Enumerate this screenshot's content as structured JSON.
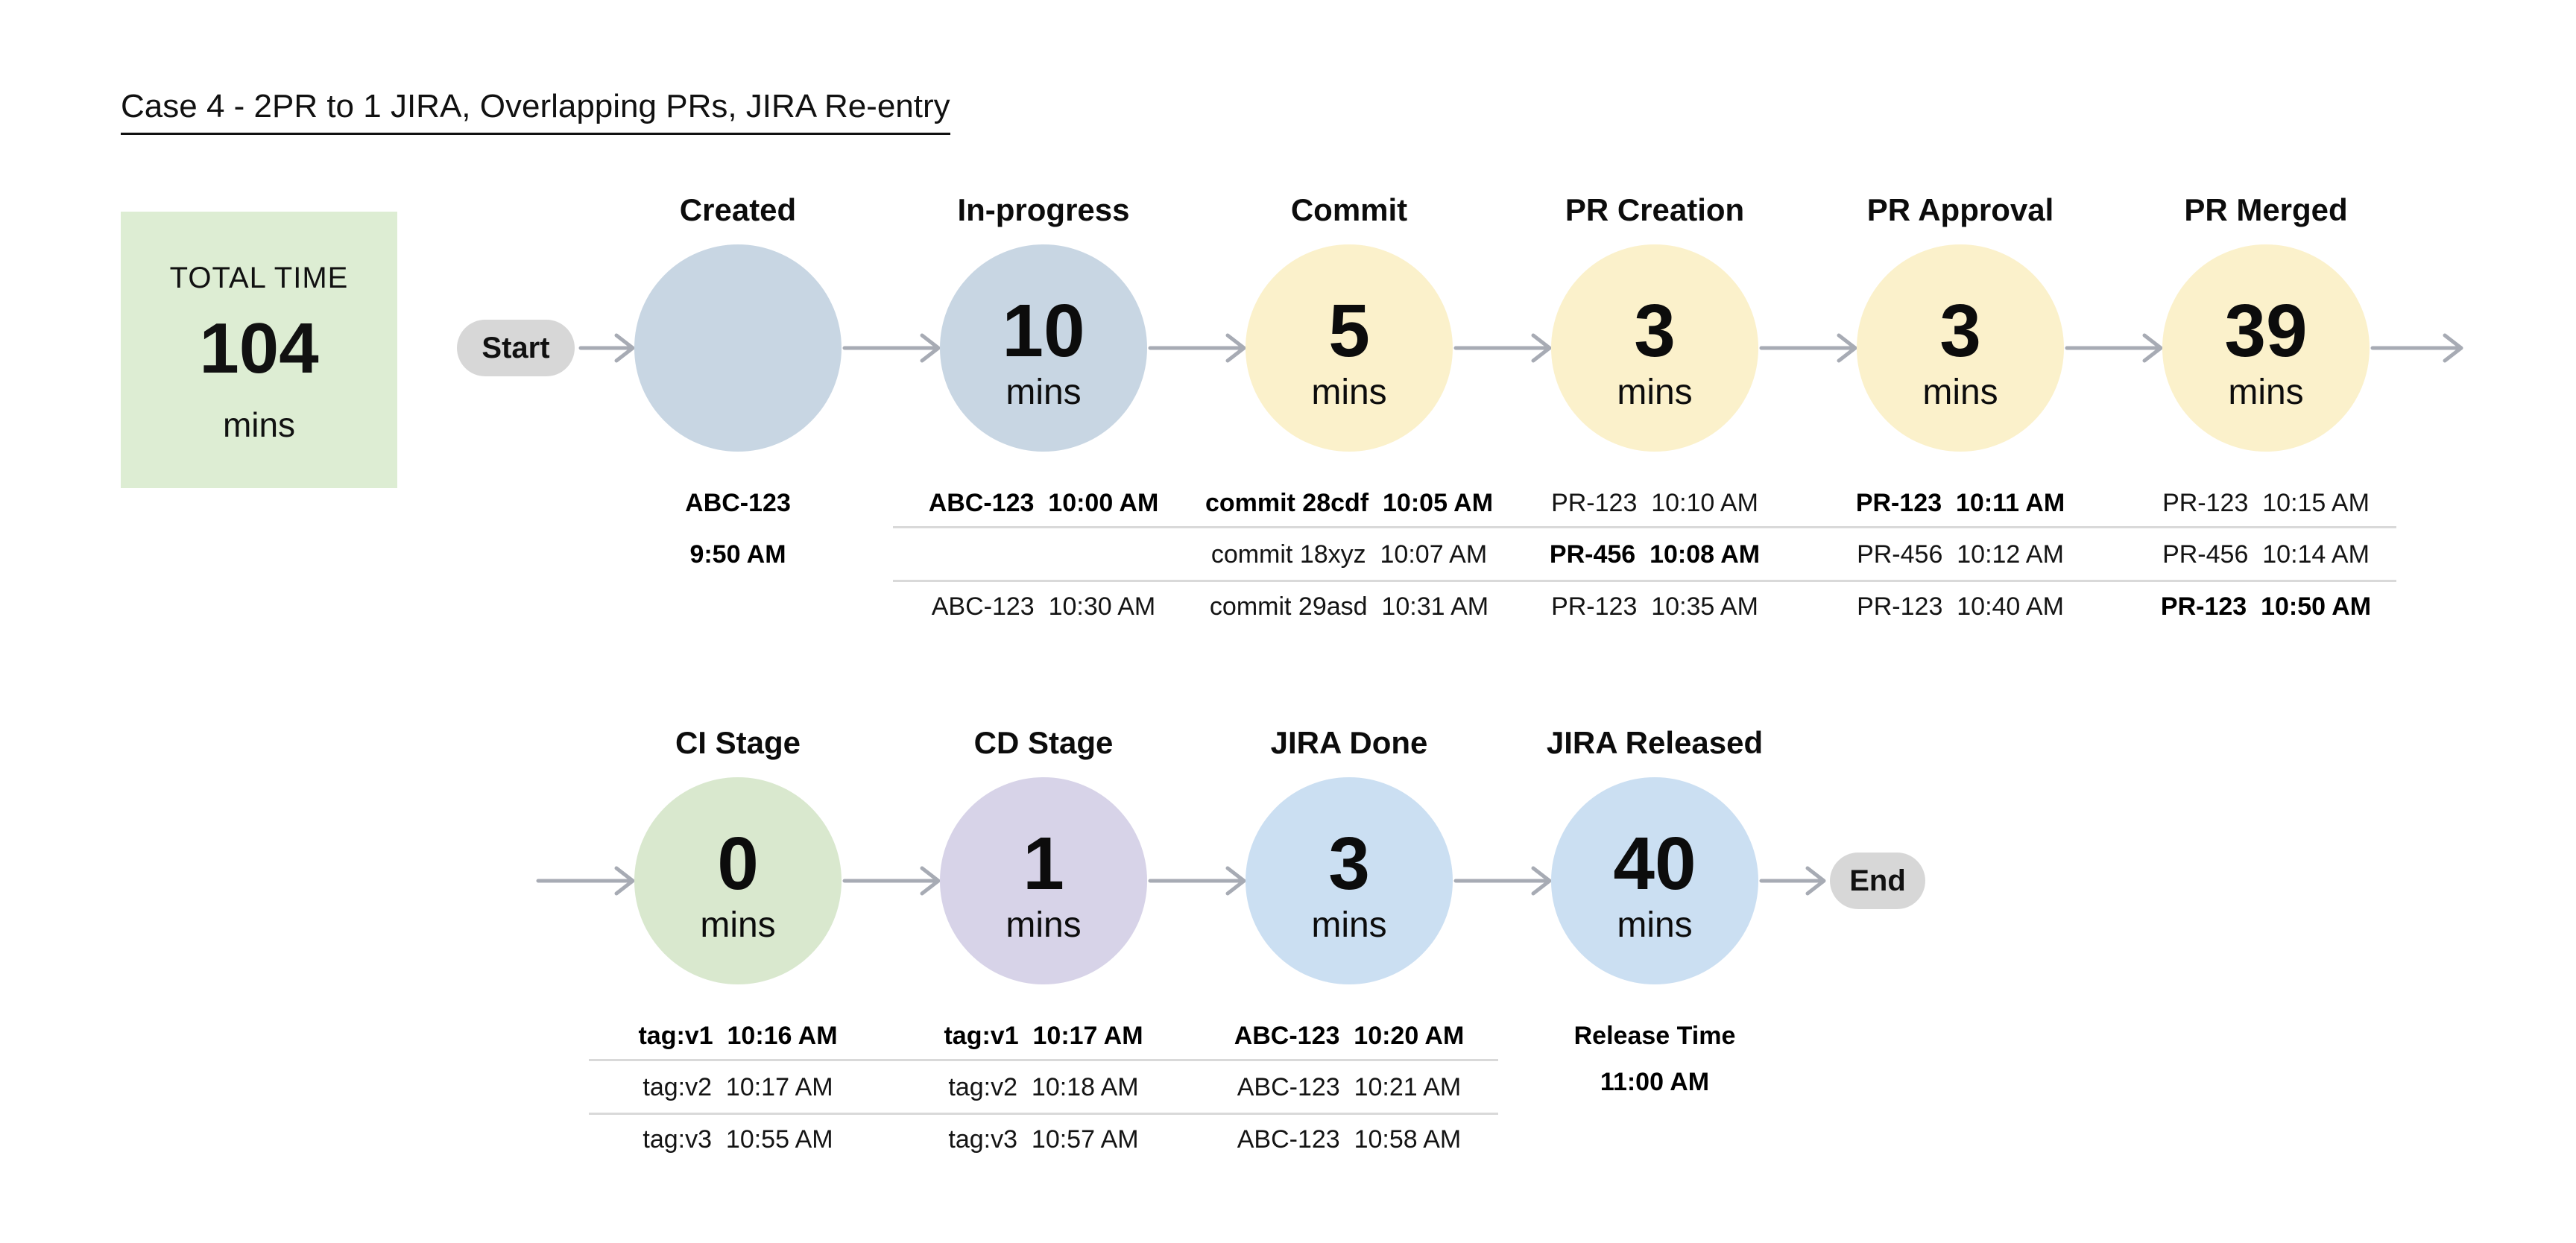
{
  "title": "Case 4 - 2PR to 1 JIRA, Overlapping PRs, JIRA Re-entry",
  "total_time": {
    "label": "TOTAL TIME",
    "value": "104",
    "unit": "mins"
  },
  "terminals": {
    "start": "Start",
    "end": "End"
  },
  "colors": {
    "stage_blue_gray": "#c8d6e3",
    "stage_yellow": "#fbf1cb",
    "stage_green": "#d9e8ce",
    "stage_lavender": "#d7d3e8",
    "stage_blue": "#cbdff2",
    "total_box_green": "#ddedd3",
    "terminal_gray": "#d7d7d7",
    "arrow_gray": "#a7abb4",
    "divider_gray": "#d9d9d9"
  },
  "rows": [
    {
      "name": "row-1",
      "stages": [
        {
          "label": "Created",
          "value": "",
          "unit": "",
          "color_key": "stage_blue_gray",
          "notes_mode": "stack",
          "notes": [
            {
              "text": "ABC-123",
              "bold": true
            },
            {
              "text": "9:50 AM",
              "bold": true
            }
          ]
        },
        {
          "label": "In-progress",
          "value": "10",
          "unit": "mins",
          "color_key": "stage_blue_gray",
          "notes_mode": "table",
          "notes": [
            {
              "text": "ABC-123  10:00 AM",
              "bold": true
            },
            {
              "text": "",
              "bold": false
            },
            {
              "text": "ABC-123  10:30 AM",
              "bold": false
            }
          ]
        },
        {
          "label": "Commit",
          "value": "5",
          "unit": "mins",
          "color_key": "stage_yellow",
          "notes_mode": "table",
          "notes": [
            {
              "text": "commit 28cdf  10:05 AM",
              "bold": true
            },
            {
              "text": "commit 18xyz  10:07 AM",
              "bold": false
            },
            {
              "text": "commit 29asd  10:31 AM",
              "bold": false
            }
          ]
        },
        {
          "label": "PR Creation",
          "value": "3",
          "unit": "mins",
          "color_key": "stage_yellow",
          "notes_mode": "table",
          "notes": [
            {
              "text": "PR-123  10:10 AM",
              "bold": false
            },
            {
              "text": "PR-456  10:08 AM",
              "bold": true
            },
            {
              "text": "PR-123  10:35 AM",
              "bold": false
            }
          ]
        },
        {
          "label": "PR Approval",
          "value": "3",
          "unit": "mins",
          "color_key": "stage_yellow",
          "notes_mode": "table",
          "notes": [
            {
              "text": "PR-123  10:11 AM",
              "bold": true
            },
            {
              "text": "PR-456  10:12 AM",
              "bold": false
            },
            {
              "text": "PR-123  10:40 AM",
              "bold": false
            }
          ]
        },
        {
          "label": "PR Merged",
          "value": "39",
          "unit": "mins",
          "color_key": "stage_yellow",
          "notes_mode": "table",
          "notes": [
            {
              "text": "PR-123  10:15 AM",
              "bold": false
            },
            {
              "text": "PR-456  10:14 AM",
              "bold": false
            },
            {
              "text": "PR-123  10:50 AM",
              "bold": true
            }
          ]
        }
      ]
    },
    {
      "name": "row-2",
      "stages": [
        {
          "label": "CI Stage",
          "value": "0",
          "unit": "mins",
          "color_key": "stage_green",
          "notes_mode": "table",
          "notes": [
            {
              "text": "tag:v1  10:16 AM",
              "bold": true
            },
            {
              "text": "tag:v2  10:17 AM",
              "bold": false
            },
            {
              "text": "tag:v3  10:55 AM",
              "bold": false
            }
          ]
        },
        {
          "label": "CD Stage",
          "value": "1",
          "unit": "mins",
          "color_key": "stage_lavender",
          "notes_mode": "table",
          "notes": [
            {
              "text": "tag:v1  10:17 AM",
              "bold": true
            },
            {
              "text": "tag:v2  10:18 AM",
              "bold": false
            },
            {
              "text": "tag:v3  10:57 AM",
              "bold": false
            }
          ]
        },
        {
          "label": "JIRA Done",
          "value": "3",
          "unit": "mins",
          "color_key": "stage_blue",
          "notes_mode": "table",
          "notes": [
            {
              "text": "ABC-123  10:20 AM",
              "bold": true
            },
            {
              "text": "ABC-123  10:21 AM",
              "bold": false
            },
            {
              "text": "ABC-123  10:58 AM",
              "bold": false
            }
          ]
        },
        {
          "label": "JIRA Released",
          "value": "40",
          "unit": "mins",
          "color_key": "stage_blue",
          "notes_mode": "stack",
          "notes": [
            {
              "text": "Release Time",
              "bold": true
            },
            {
              "text": "11:00 AM",
              "bold": true
            }
          ]
        }
      ]
    }
  ]
}
